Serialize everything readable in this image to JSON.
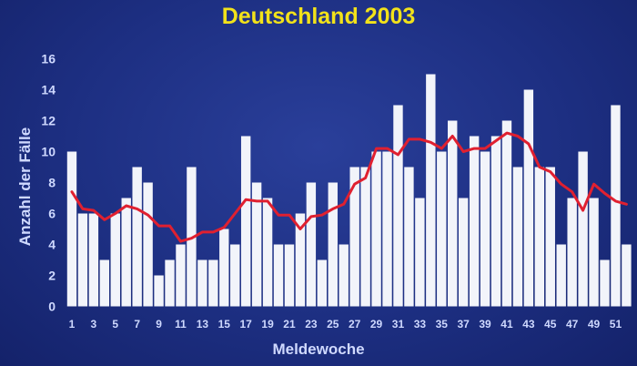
{
  "chart_data": {
    "type": "bar",
    "title": "Deutschland 2003",
    "xlabel": "Meldewoche",
    "ylabel": "Anzahl der Fälle",
    "ylim": [
      0,
      16
    ],
    "yticks": [
      0,
      2,
      4,
      6,
      8,
      10,
      12,
      14,
      16
    ],
    "categories": [
      1,
      2,
      3,
      4,
      5,
      6,
      7,
      8,
      9,
      10,
      11,
      12,
      13,
      14,
      15,
      16,
      17,
      18,
      19,
      20,
      21,
      22,
      23,
      24,
      25,
      26,
      27,
      28,
      29,
      30,
      31,
      32,
      33,
      34,
      35,
      36,
      37,
      38,
      39,
      40,
      41,
      42,
      43,
      44,
      45,
      46,
      47,
      48,
      49,
      50,
      51,
      52
    ],
    "xtick_labels": [
      "1",
      "3",
      "5",
      "7",
      "9",
      "11",
      "13",
      "15",
      "17",
      "19",
      "21",
      "23",
      "25",
      "27",
      "29",
      "31",
      "33",
      "35",
      "37",
      "39",
      "41",
      "43",
      "45",
      "47",
      "49",
      "51"
    ],
    "series": [
      {
        "type": "bar",
        "values": [
          10,
          6,
          6,
          3,
          6,
          7,
          9,
          8,
          2,
          3,
          4,
          9,
          3,
          3,
          5,
          4,
          11,
          8,
          7,
          4,
          4,
          6,
          8,
          3,
          8,
          4,
          9,
          9,
          10,
          10,
          13,
          9,
          7,
          15,
          10,
          12,
          7,
          11,
          10,
          11,
          12,
          9,
          14,
          9,
          9,
          4,
          7,
          10,
          7,
          3,
          13,
          4
        ]
      },
      {
        "type": "line",
        "values": [
          7.4,
          6.3,
          6.2,
          5.6,
          6.0,
          6.5,
          6.3,
          5.9,
          5.2,
          5.2,
          4.2,
          4.4,
          4.8,
          4.8,
          5.1,
          6.0,
          6.9,
          6.8,
          6.8,
          5.9,
          5.9,
          5.0,
          5.8,
          5.9,
          6.3,
          6.6,
          7.9,
          8.3,
          10.2,
          10.2,
          9.8,
          10.8,
          10.8,
          10.6,
          10.2,
          11.0,
          10.0,
          10.2,
          10.2,
          10.7,
          11.2,
          11.0,
          10.5,
          9.0,
          8.7,
          7.9,
          7.4,
          6.2,
          7.9,
          7.3,
          6.8,
          6.6
        ]
      }
    ],
    "colors": {
      "bar": "#f2f4fa",
      "line": "#e02030",
      "axis_text": "#cfd9ff",
      "title": "#f2e21a"
    },
    "grid": false,
    "legend": "none"
  }
}
